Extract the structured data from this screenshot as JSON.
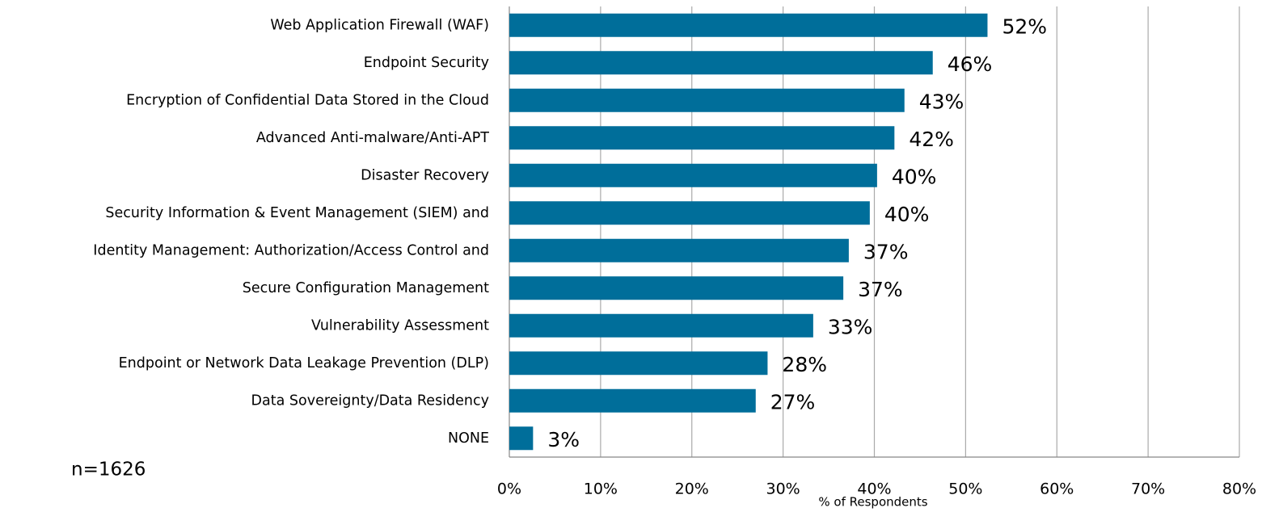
{
  "chart_data": {
    "type": "hbar",
    "categories": [
      "Web Application Firewall (WAF)",
      "Endpoint Security",
      "Encryption of Confidential Data Stored in the Cloud",
      "Advanced Anti-malware/Anti-APT",
      "Disaster Recovery",
      "Security Information & Event Management (SIEM) and",
      "Identity Management: Authorization/Access Control and",
      "Secure Configuration Management",
      "Vulnerability Assessment",
      "Endpoint or Network Data Leakage Prevention (DLP)",
      "Data Sovereignty/Data Residency",
      "NONE"
    ],
    "values": [
      52.4,
      46.4,
      43.3,
      42.2,
      40.3,
      39.5,
      37.2,
      36.6,
      33.3,
      28.3,
      27.0,
      2.6
    ],
    "value_labels": [
      "52%",
      "46%",
      "43%",
      "42%",
      "40%",
      "40%",
      "37%",
      "37%",
      "33%",
      "28%",
      "27%",
      "3%"
    ],
    "color": "#006e9a",
    "xlim": [
      0,
      80
    ],
    "xticks": [
      {
        "value": 0,
        "label": "0%"
      },
      {
        "value": 10,
        "label": "10%"
      },
      {
        "value": 20,
        "label": "20%"
      },
      {
        "value": 30,
        "label": "30%"
      },
      {
        "value": 40,
        "label": "40%"
      },
      {
        "value": 50,
        "label": "50%"
      },
      {
        "value": 60,
        "label": "60%"
      },
      {
        "value": 70,
        "label": "70%"
      },
      {
        "value": 80,
        "label": "80%"
      }
    ],
    "grid": true,
    "x_label": "% of Respondents",
    "annotation": "n=1626"
  }
}
